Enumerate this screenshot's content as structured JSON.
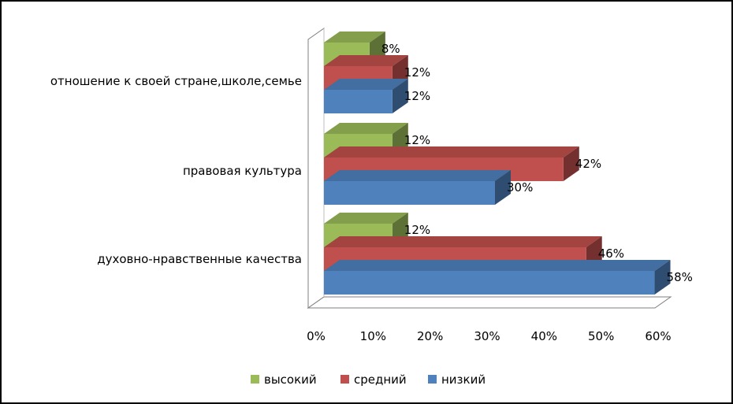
{
  "chart_data": {
    "type": "bar",
    "orientation": "horizontal",
    "categories": [
      "духовно-нравственные качества",
      "правовая культура",
      "отношение к своей стране,школе,семье"
    ],
    "series": [
      {
        "name": "низкий",
        "values": [
          58,
          30,
          12
        ],
        "color": "#4F81BD",
        "labels": [
          "58%",
          "30%",
          "12%"
        ]
      },
      {
        "name": "средний",
        "values": [
          46,
          42,
          12
        ],
        "color": "#C0504D",
        "labels": [
          "46%",
          "42%",
          "12%"
        ]
      },
      {
        "name": "высокий",
        "values": [
          12,
          12,
          8
        ],
        "color": "#9BBB59",
        "labels": [
          "12%",
          "12%",
          "8%"
        ]
      }
    ],
    "xlim": [
      0,
      60
    ],
    "x_ticks": [
      0,
      10,
      20,
      30,
      40,
      50,
      60
    ],
    "x_tick_labels": [
      "0%",
      "10%",
      "20%",
      "30%",
      "40%",
      "50%",
      "60%"
    ],
    "legend_order": [
      "высокий",
      "средний",
      "низкий"
    ],
    "legend_position": "bottom",
    "grid": false,
    "style": "3d"
  }
}
